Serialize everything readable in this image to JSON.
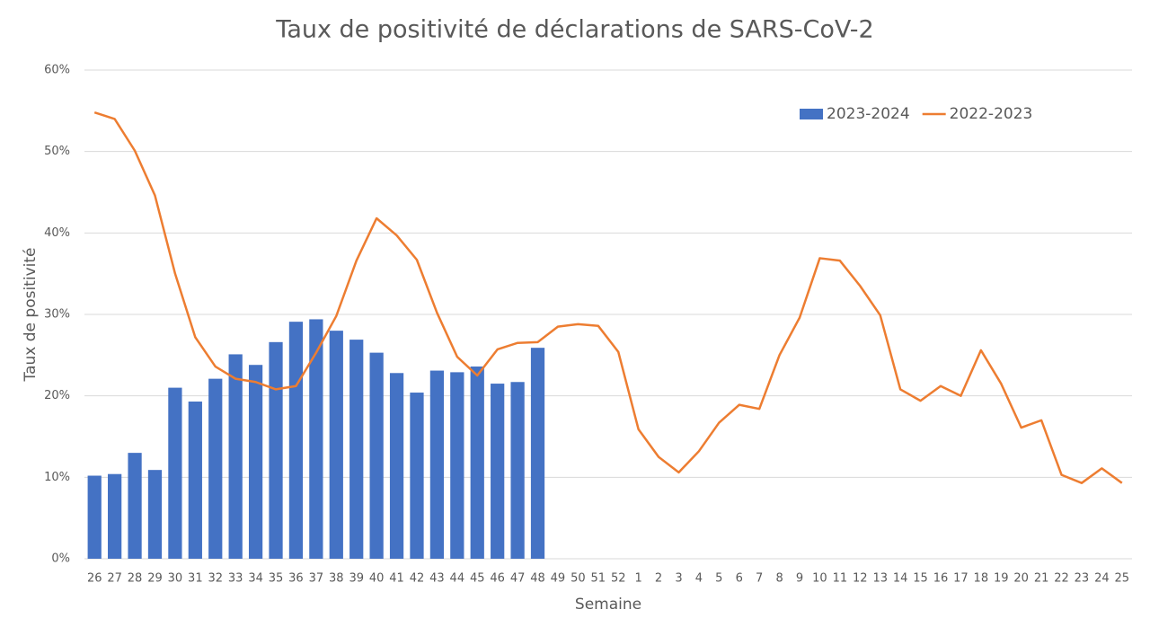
{
  "chart_data": {
    "type": "combo",
    "title": "Taux de positivité de déclarations de SARS-CoV-2",
    "x_label": "Semaine",
    "y_label": "Taux de positivité",
    "categories": [
      "26",
      "27",
      "28",
      "29",
      "30",
      "31",
      "32",
      "33",
      "34",
      "35",
      "36",
      "37",
      "38",
      "39",
      "40",
      "41",
      "42",
      "43",
      "44",
      "45",
      "46",
      "47",
      "48",
      "49",
      "50",
      "51",
      "52",
      "1",
      "2",
      "3",
      "4",
      "5",
      "6",
      "7",
      "8",
      "9",
      "10",
      "11",
      "12",
      "13",
      "14",
      "15",
      "16",
      "17",
      "18",
      "19",
      "20",
      "21",
      "22",
      "23",
      "24",
      "25"
    ],
    "series": [
      {
        "name": "2023-2024",
        "type": "bar",
        "color": "#4472c4",
        "values": [
          10.2,
          10.4,
          13.0,
          10.9,
          21.0,
          19.3,
          22.1,
          25.1,
          23.8,
          26.6,
          29.1,
          29.4,
          28.0,
          26.9,
          25.3,
          22.8,
          20.4,
          23.1,
          22.9,
          23.6,
          21.5,
          21.7,
          25.9,
          null,
          null,
          null,
          null,
          null,
          null,
          null,
          null,
          null,
          null,
          null,
          null,
          null,
          null,
          null,
          null,
          null,
          null,
          null,
          null,
          null,
          null,
          null,
          null,
          null,
          null,
          null,
          null,
          null
        ]
      },
      {
        "name": "2022-2023",
        "type": "line",
        "color": "#ed7d31",
        "values": [
          54.8,
          54.0,
          50.1,
          44.6,
          35.0,
          27.2,
          23.6,
          22.1,
          21.7,
          20.8,
          21.2,
          25.3,
          29.8,
          36.6,
          41.8,
          39.7,
          36.7,
          30.2,
          24.8,
          22.5,
          25.7,
          26.5,
          26.6,
          28.5,
          28.8,
          28.6,
          25.4,
          15.9,
          12.5,
          10.6,
          13.2,
          16.7,
          18.9,
          18.4,
          25.0,
          29.6,
          36.9,
          36.6,
          33.5,
          29.9,
          20.8,
          19.4,
          21.2,
          20.0,
          25.6,
          21.5,
          16.1,
          17.0,
          10.3,
          9.3,
          11.1,
          9.3
        ]
      }
    ],
    "ylim": [
      0,
      60
    ],
    "yticks": [
      {
        "value": 0,
        "label": "0%"
      },
      {
        "value": 10,
        "label": "10%"
      },
      {
        "value": 20,
        "label": "20%"
      },
      {
        "value": 30,
        "label": "30%"
      },
      {
        "value": 40,
        "label": "40%"
      },
      {
        "value": 50,
        "label": "50%"
      },
      {
        "value": 60,
        "label": "60%"
      }
    ],
    "grid": true,
    "legend": "top-right"
  }
}
